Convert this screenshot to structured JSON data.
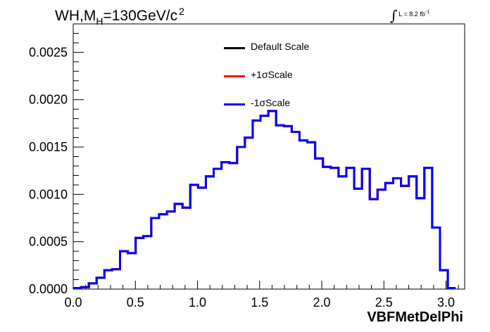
{
  "chart_data": {
    "type": "line",
    "title": {
      "main": "WH,M",
      "sub": "H",
      "rest": "=130GeV/c",
      "sup": "2"
    },
    "luminosity": {
      "integral": "∫",
      "text": "L = 8.2 fb",
      "sup": "-1"
    },
    "xlabel": "VBFMetDelPhi",
    "ylabel": "",
    "xlim": [
      0,
      3.15
    ],
    "ylim": [
      0,
      0.0028
    ],
    "xticks": [
      "0.0",
      "0.5",
      "1.0",
      "1.5",
      "2.0",
      "2.5",
      "3.0"
    ],
    "xtick_values": [
      0,
      0.5,
      1.0,
      1.5,
      2.0,
      2.5,
      3.0
    ],
    "yticks": [
      "0.0000",
      "0.0005",
      "0.0010",
      "0.0015",
      "0.0020",
      "0.0025"
    ],
    "ytick_values": [
      0,
      0.0005,
      0.001,
      0.0015,
      0.002,
      0.0025
    ],
    "bin_width": 0.0628,
    "legend_position": "top-center",
    "series": [
      {
        "name": "Default Scale",
        "color": "#000000",
        "values": [
          1e-05,
          2e-05,
          6e-05,
          0.00012,
          0.0002,
          0.00021,
          0.0004,
          0.00038,
          0.00054,
          0.00056,
          0.00075,
          0.00079,
          0.00082,
          0.0009,
          0.00086,
          0.0011,
          0.00107,
          0.00119,
          0.00127,
          0.00134,
          0.00133,
          0.0015,
          0.0016,
          0.00178,
          0.00183,
          0.00188,
          0.00173,
          0.00172,
          0.00166,
          0.00157,
          0.00155,
          0.00138,
          0.00129,
          0.00128,
          0.00119,
          0.00128,
          0.00106,
          0.00127,
          0.00095,
          0.00105,
          0.00112,
          0.00117,
          0.00109,
          0.00119,
          0.00096,
          0.00128,
          0.00065,
          0.0002,
          1e-05
        ]
      },
      {
        "name": "+1σScale",
        "color": "#ff0000",
        "values": [
          1e-05,
          2e-05,
          6e-05,
          0.00012,
          0.0002,
          0.00021,
          0.0004,
          0.00038,
          0.00054,
          0.00056,
          0.00075,
          0.00079,
          0.00082,
          0.0009,
          0.00086,
          0.0011,
          0.00107,
          0.00119,
          0.00127,
          0.00134,
          0.00133,
          0.0015,
          0.0016,
          0.00178,
          0.00183,
          0.00188,
          0.00173,
          0.00172,
          0.00166,
          0.00157,
          0.00155,
          0.00138,
          0.00129,
          0.00128,
          0.00119,
          0.00128,
          0.00106,
          0.00127,
          0.00095,
          0.00105,
          0.00112,
          0.00117,
          0.00109,
          0.00119,
          0.00096,
          0.00128,
          0.00065,
          0.0002,
          1e-05
        ]
      },
      {
        "name": "-1σScale",
        "color": "#0000ff",
        "values": [
          1e-05,
          2e-05,
          6e-05,
          0.00012,
          0.0002,
          0.00021,
          0.0004,
          0.00038,
          0.00054,
          0.00056,
          0.00075,
          0.00079,
          0.00082,
          0.0009,
          0.00086,
          0.0011,
          0.00107,
          0.00119,
          0.00127,
          0.00134,
          0.00133,
          0.0015,
          0.0016,
          0.00178,
          0.00183,
          0.00188,
          0.00173,
          0.00172,
          0.00166,
          0.00157,
          0.00155,
          0.00138,
          0.00129,
          0.00128,
          0.00119,
          0.00128,
          0.00106,
          0.00127,
          0.00095,
          0.00105,
          0.00112,
          0.00117,
          0.00109,
          0.00119,
          0.00096,
          0.00128,
          0.00065,
          0.0002,
          1e-05
        ]
      }
    ]
  }
}
